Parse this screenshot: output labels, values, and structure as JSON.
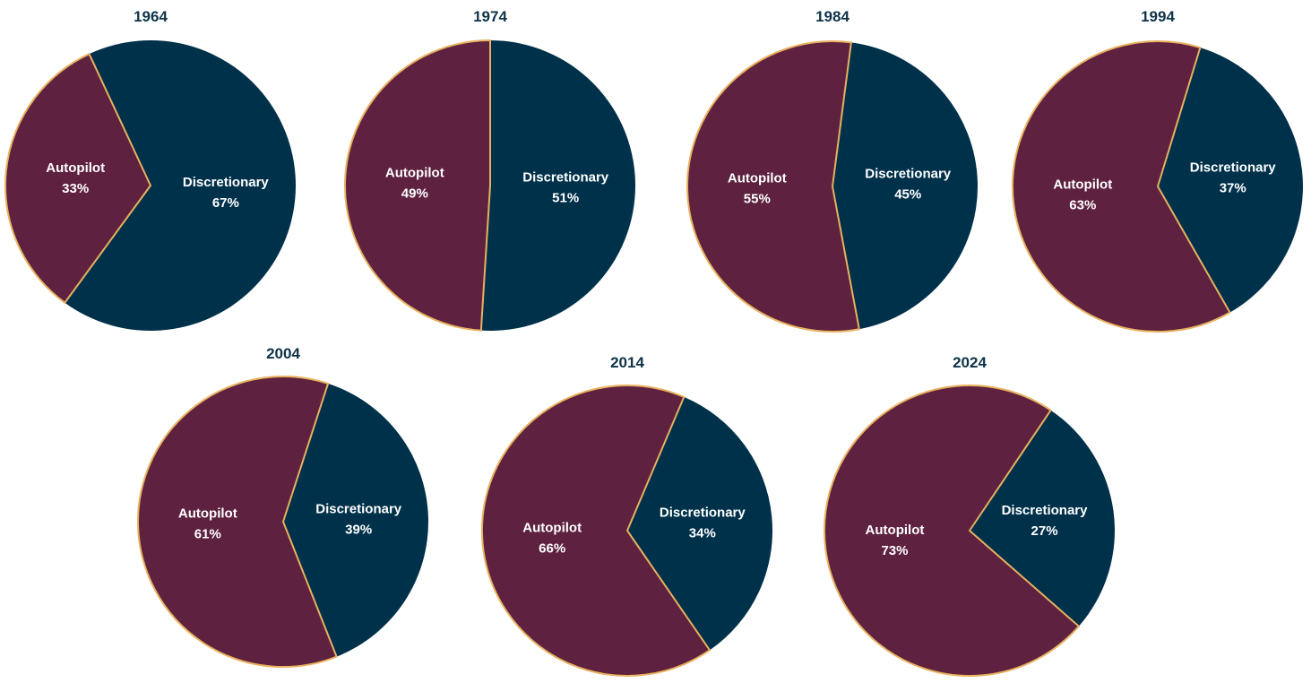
{
  "chart_data": [
    {
      "type": "pie",
      "title": "1964",
      "labels": [
        "Autopilot",
        "Discretionary"
      ],
      "values": [
        33,
        67
      ]
    },
    {
      "type": "pie",
      "title": "1974",
      "labels": [
        "Autopilot",
        "Discretionary"
      ],
      "values": [
        49,
        51
      ]
    },
    {
      "type": "pie",
      "title": "1984",
      "labels": [
        "Autopilot",
        "Discretionary"
      ],
      "values": [
        55,
        45
      ]
    },
    {
      "type": "pie",
      "title": "1994",
      "labels": [
        "Autopilot",
        "Discretionary"
      ],
      "values": [
        63,
        37
      ]
    },
    {
      "type": "pie",
      "title": "2004",
      "labels": [
        "Autopilot",
        "Discretionary"
      ],
      "values": [
        61,
        39
      ]
    },
    {
      "type": "pie",
      "title": "2014",
      "labels": [
        "Autopilot",
        "Discretionary"
      ],
      "values": [
        66,
        34
      ]
    },
    {
      "type": "pie",
      "title": "2024",
      "labels": [
        "Autopilot",
        "Discretionary"
      ],
      "values": [
        73,
        27
      ]
    }
  ],
  "colors": {
    "autopilot": "#5E2140",
    "discretionary": "#00314A",
    "slice_border": "#E8B15E",
    "title": "#0E3349",
    "label": "#FFFFFF"
  }
}
